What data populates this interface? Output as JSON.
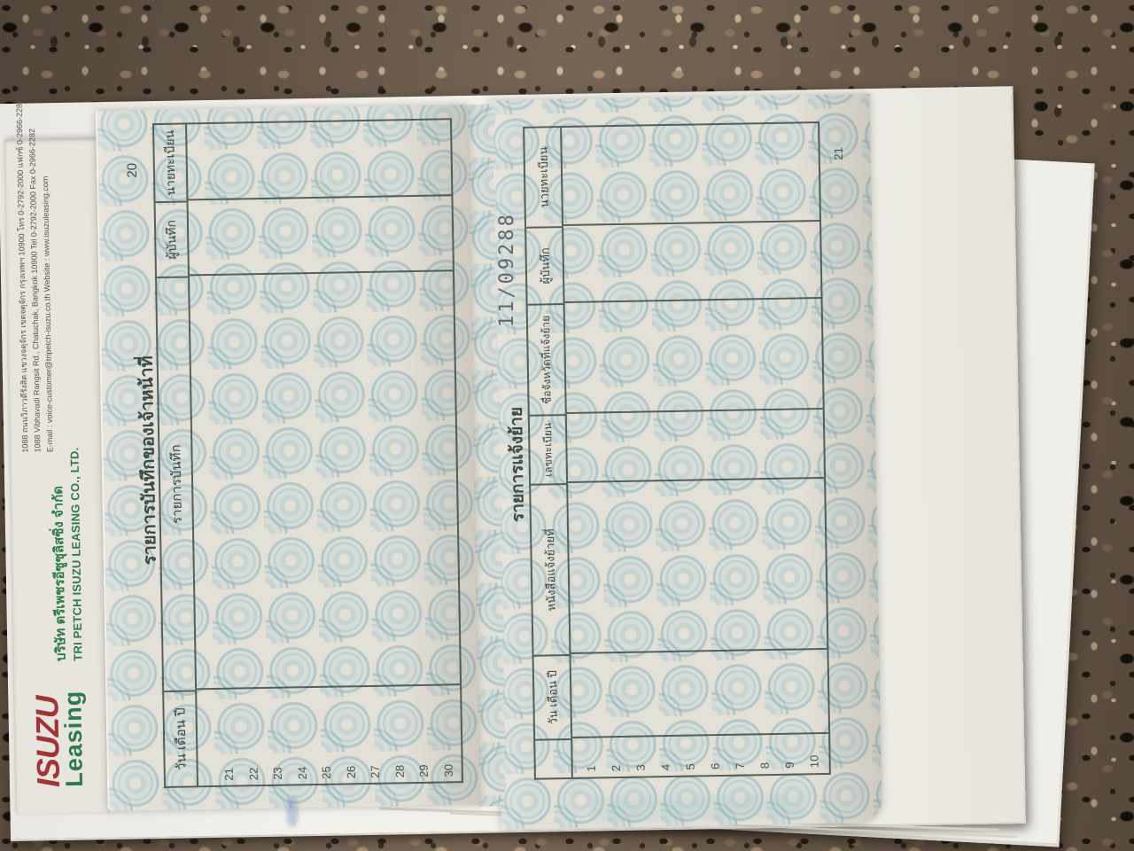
{
  "cover": {
    "brand_isuzu": "ISUZU",
    "brand_leasing": "Leasing",
    "company_th": "บริษัท ตรีเพชรอีซูซุลิสซิ่ง จำกัด",
    "company_en": "TRI PETCH ISUZU LEASING CO., LTD.",
    "address_th": "1088 ถนนวิภาวดีรังสิต แขวงจตุจักร เขตจตุจักร กรุงเทพฯ 10900 โทร 0-2792-2000 แฟกซ์ 0-2966-2282",
    "address_en": "1088 Vibhavadi Rangsit Rd., Chatuchak, Bangkok 10900 Tel 0-2792-2000 Fax 0-2966-2282",
    "contact_line": "E-mail : voice-customer@tripetch-isuzu.co.th Website : www.isuzuleasing.com"
  },
  "page20": {
    "page_number": "20",
    "title": "รายการบันทึกของเจ้าหน้าที่",
    "columns": [
      "วัน เดือน ปี",
      "รายการบันทึก",
      "ผู้บันทึก",
      "นายทะเบียน"
    ],
    "row_numbers": [
      "21",
      "22",
      "23",
      "24",
      "25",
      "26",
      "27",
      "28",
      "29",
      "30"
    ]
  },
  "page21": {
    "page_number": "21",
    "title": "รายการแจ้งย้าย",
    "handwritten_number": "11/09288",
    "columns": [
      "วัน เดือน ปี",
      "หนังสือแจ้งย้ายที่",
      "เลขทะเบียน",
      "ชื่อจังหวัดที่แจ้งย้าย",
      "ผู้บันทึก",
      "นายทะเบียน"
    ],
    "row_numbers": [
      "1",
      "2",
      "3",
      "4",
      "5",
      "6",
      "7",
      "8",
      "9",
      "10"
    ]
  },
  "colors": {
    "granite_base": "#6f5d4c",
    "paper": "#e3e0d8",
    "watermark_teal": "#a9c4c8",
    "table_line": "#3e4a44",
    "isuzu_red": "#a23437",
    "leasing_green": "#2f7a4c"
  }
}
